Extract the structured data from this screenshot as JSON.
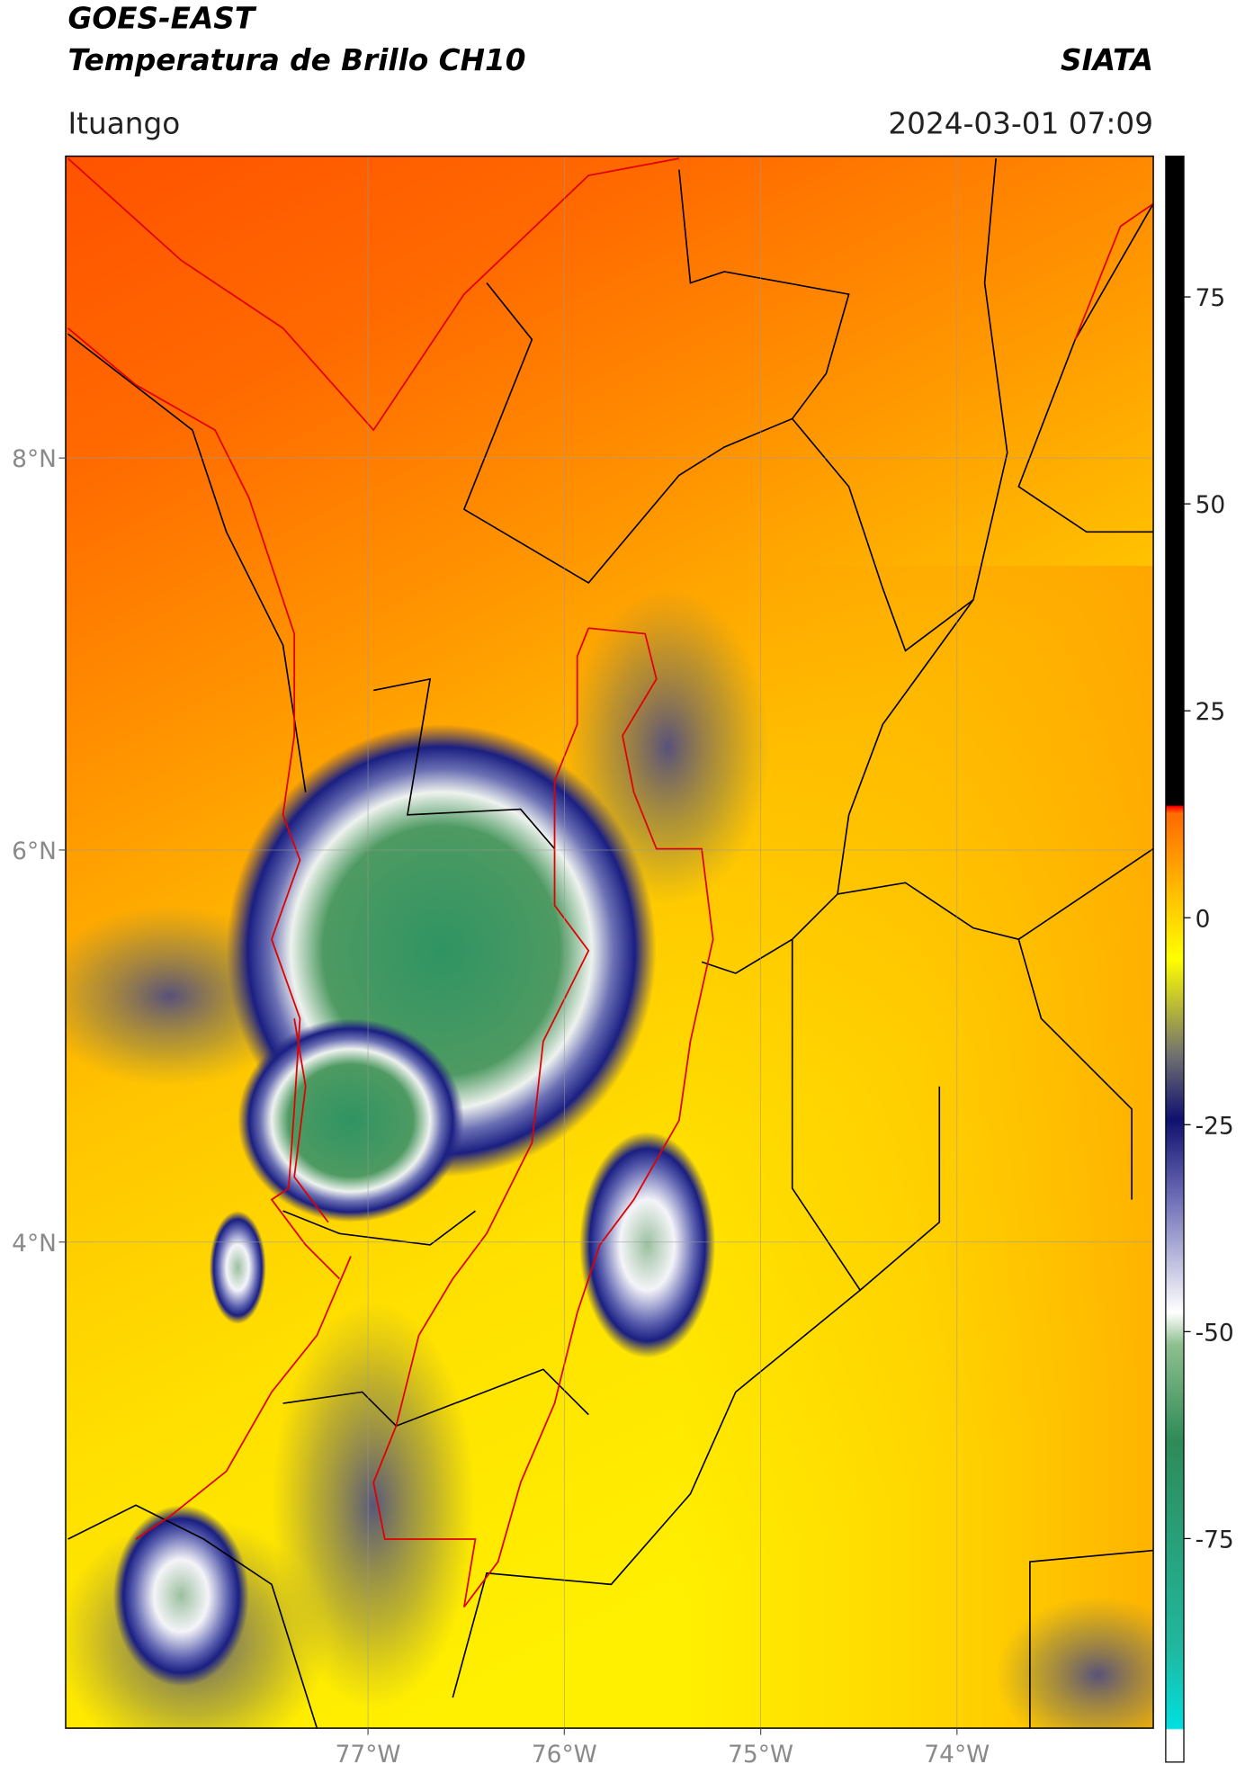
{
  "header": {
    "satellite": "GOES-EAST",
    "product": "Temperatura de Brillo CH10",
    "brand": "SIATA",
    "region": "Ituango",
    "datetime": "2024-03-01 07:09"
  },
  "map": {
    "xlim": [
      -78.54,
      -73.0
    ],
    "ylim": [
      1.52,
      9.54
    ],
    "xticks": [
      {
        "value": -77,
        "label": "77°W"
      },
      {
        "value": -76,
        "label": "76°W"
      },
      {
        "value": -75,
        "label": "75°W"
      },
      {
        "value": -74,
        "label": "74°W"
      }
    ],
    "yticks": [
      {
        "value": 8,
        "label": "8°N"
      },
      {
        "value": 6,
        "label": "6°N"
      },
      {
        "value": 4,
        "label": "4°N"
      }
    ],
    "grid": true
  },
  "colorbar": {
    "lim": [
      -102,
      92
    ],
    "ticks": [
      75,
      50,
      25,
      0,
      -25,
      -50,
      -75
    ]
  }
}
